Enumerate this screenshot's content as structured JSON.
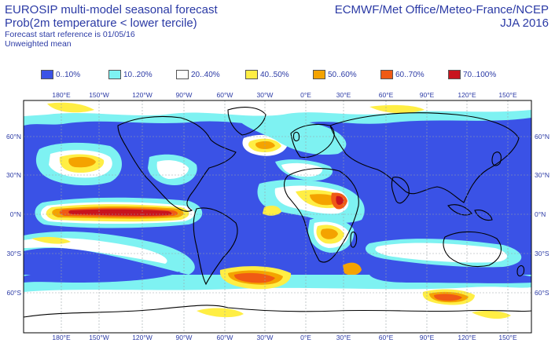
{
  "header": {
    "title_line1": "EUROSIP multi-model seasonal forecast",
    "title_line2": "Prob(2m temperature < lower tercile)",
    "title_line3": "Forecast start reference is 01/05/16",
    "title_line4": "Unweighted mean",
    "source": "ECMWF/Met Office/Meteo-France/NCEP",
    "season": "JJA 2016"
  },
  "legend": [
    {
      "label": "0..10%",
      "color": "#3a52e6"
    },
    {
      "label": "10..20%",
      "color": "#7ef2f2"
    },
    {
      "label": "20..40%",
      "color": "#ffffff"
    },
    {
      "label": "40..50%",
      "color": "#ffee44"
    },
    {
      "label": "50..60%",
      "color": "#f4a300"
    },
    {
      "label": "60..70%",
      "color": "#f05a14"
    },
    {
      "label": "70..100%",
      "color": "#c8141e"
    }
  ],
  "axes": {
    "lon_ticks": [
      "180°E",
      "150°W",
      "120°W",
      "90°W",
      "60°W",
      "30°W",
      "0°E",
      "30°E",
      "60°E",
      "90°E",
      "120°E",
      "150°E"
    ],
    "lat_ticks": [
      "60°N",
      "30°N",
      "0°N",
      "30°S",
      "60°S"
    ]
  }
}
